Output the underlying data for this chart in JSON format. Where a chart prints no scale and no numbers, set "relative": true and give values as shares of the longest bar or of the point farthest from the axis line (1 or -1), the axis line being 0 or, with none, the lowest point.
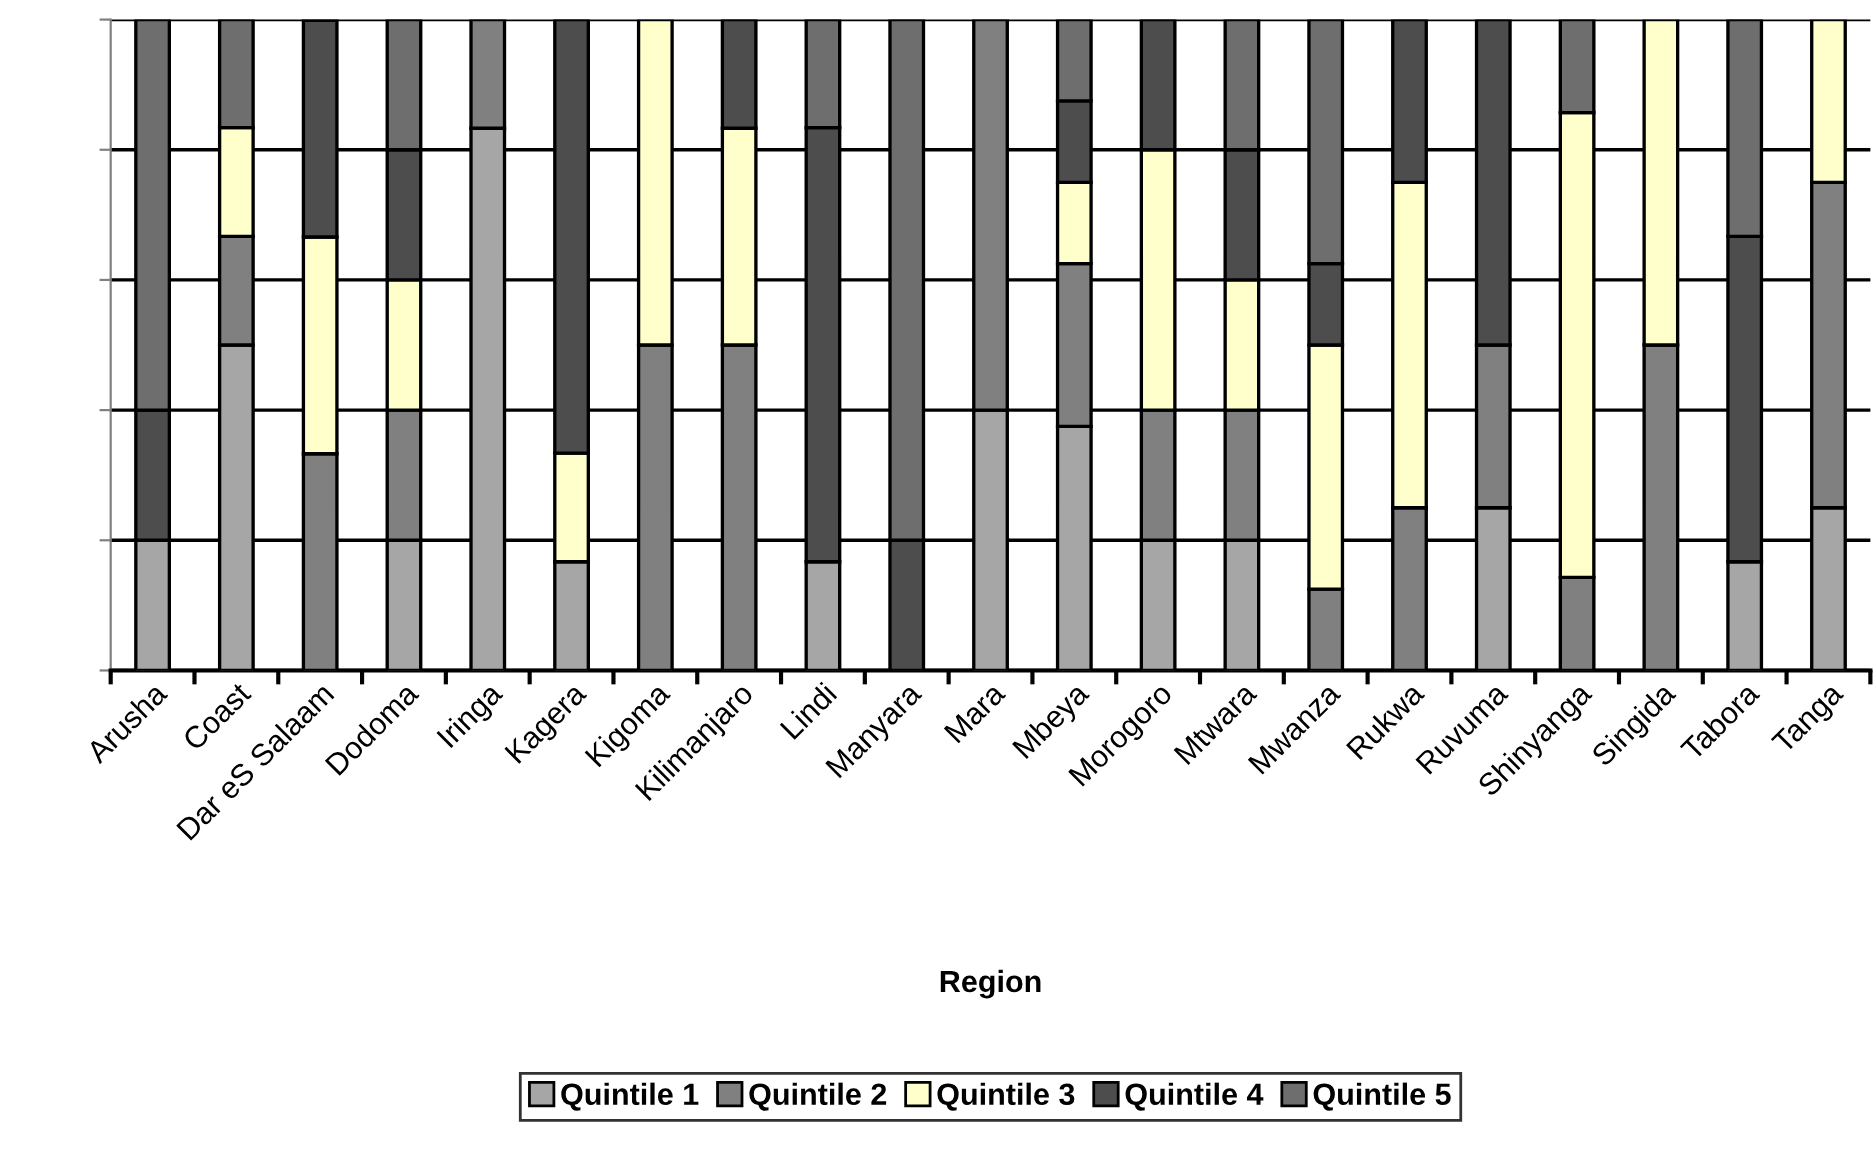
{
  "chart_data": {
    "type": "bar",
    "stacked": true,
    "relative": true,
    "xlabel": "Region",
    "categories": [
      "Arusha",
      "Coast",
      "Dar eS Salaam",
      "Dodoma",
      "Iringa",
      "Kagera",
      "Kigoma",
      "Kilimanjaro",
      "Lindi",
      "Manyara",
      "Mara",
      "Mbeya",
      "Morogoro",
      "Mtwara",
      "Mwanza",
      "Rukwa",
      "Ruvuma",
      "Shinyanga",
      "Singida",
      "Tabora",
      "Tanga"
    ],
    "series": [
      {
        "name": "Quintile 1",
        "color": "#a6a6a6",
        "values": [
          0.2,
          0.5,
          0,
          0.2,
          0.833,
          0.167,
          0,
          0,
          0.167,
          0,
          0.4,
          0.375,
          0.2,
          0.2,
          0,
          0,
          0.25,
          0,
          0,
          0.167,
          0.25
        ]
      },
      {
        "name": "Quintile 2",
        "color": "#808080",
        "values": [
          0,
          0.167,
          0.333,
          0.2,
          0.167,
          0,
          0.5,
          0.5,
          0,
          0,
          0.6,
          0.25,
          0.2,
          0.2,
          0.125,
          0.25,
          0.25,
          0.143,
          0.5,
          0,
          0.5
        ]
      },
      {
        "name": "Quintile 3",
        "color": "#ffffcc",
        "values": [
          0,
          0.167,
          0.333,
          0.2,
          0,
          0.167,
          0.5,
          0.333,
          0,
          0,
          0,
          0.125,
          0.4,
          0.2,
          0.375,
          0.5,
          0,
          0.714,
          0.5,
          0,
          0.25
        ]
      },
      {
        "name": "Quintile 4",
        "color": "#4d4d4d",
        "values": [
          0.2,
          0,
          0.333,
          0.2,
          0,
          0.666,
          0,
          0.167,
          0.667,
          0.2,
          0,
          0.125,
          0.2,
          0.2,
          0.125,
          0.25,
          0.5,
          0,
          0,
          0.5,
          0
        ]
      },
      {
        "name": "Quintile 5",
        "color": "#6e6e6e",
        "values": [
          0.6,
          0.166,
          0,
          0.2,
          0,
          0,
          0,
          0,
          0.166,
          0.8,
          0,
          0.125,
          0,
          0.2,
          0.375,
          0,
          0,
          0.143,
          0,
          0.333,
          0
        ]
      }
    ],
    "grid": "y",
    "legend": "bottom"
  }
}
